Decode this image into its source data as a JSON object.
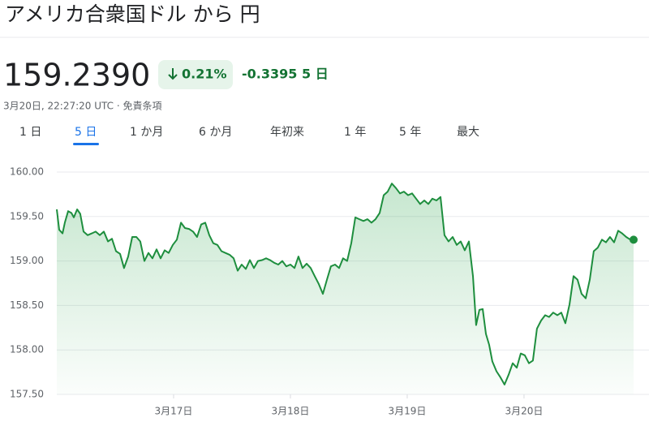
{
  "title": "アメリカ合衆国ドル から 円",
  "price": "159.2390",
  "change_pct": "0.21%",
  "change_abs": "-0.3395",
  "change_period": "5 日",
  "timestamp": "3月20日, 22:27:20 UTC · 免責条項",
  "tabs": [
    "1 日",
    "5 日",
    "1 か月",
    "6 か月",
    "年初来",
    "1 年",
    "5 年",
    "最大"
  ],
  "active_tab": 1,
  "chart_data": {
    "type": "line",
    "color": "#1e8e3e",
    "grid": true,
    "x": [
      0,
      0.021,
      0.049,
      0.069,
      0.097,
      0.125,
      0.146,
      0.174,
      0.201,
      0.229,
      0.264,
      0.299,
      0.333,
      0.368,
      0.403,
      0.438,
      0.472,
      0.507,
      0.542,
      0.576,
      0.611,
      0.646,
      0.681,
      0.715,
      0.75,
      0.785,
      0.819,
      0.854,
      0.889,
      0.924,
      0.958,
      0.993,
      1.028,
      1.063,
      1.097,
      1.132,
      1.167,
      1.201,
      1.236,
      1.271,
      1.306,
      1.34,
      1.375,
      1.41,
      1.444,
      1.479,
      1.514,
      1.549,
      1.583,
      1.618,
      1.653,
      1.688,
      1.722,
      1.757,
      1.792,
      1.826,
      1.861,
      1.896,
      1.931,
      1.965,
      2.0,
      2.035,
      2.069,
      2.104,
      2.139,
      2.174,
      2.208,
      2.243,
      2.278,
      2.313,
      2.347,
      2.382,
      2.417,
      2.451,
      2.486,
      2.521,
      2.556,
      2.59,
      2.625,
      2.66,
      2.694,
      2.729,
      2.764,
      2.799,
      2.833,
      2.868,
      2.903,
      2.938,
      2.972,
      3.007,
      3.042,
      3.076,
      3.111,
      3.146,
      3.181,
      3.215,
      3.25,
      3.285,
      3.319,
      3.354,
      3.389,
      3.424,
      3.458,
      3.493,
      3.528,
      3.563,
      3.59,
      3.618,
      3.646,
      3.674,
      3.701,
      3.729,
      3.764,
      3.799,
      3.833,
      3.868,
      3.903,
      3.938,
      3.972,
      4.007,
      4.042,
      4.076,
      4.111,
      4.146,
      4.181,
      4.215,
      4.25,
      4.285,
      4.319,
      4.354,
      4.389,
      4.424,
      4.458,
      4.493,
      4.528,
      4.563,
      4.597,
      4.632,
      4.667,
      4.701,
      4.736,
      4.771,
      4.806,
      4.84,
      4.875,
      4.91,
      4.938
    ],
    "values": [
      159.58,
      159.35,
      159.31,
      159.43,
      159.56,
      159.54,
      159.49,
      159.58,
      159.53,
      159.33,
      159.29,
      159.31,
      159.33,
      159.29,
      159.33,
      159.22,
      159.25,
      159.11,
      159.08,
      158.92,
      159.05,
      159.27,
      159.27,
      159.22,
      159.0,
      159.09,
      159.03,
      159.13,
      159.03,
      159.12,
      159.09,
      159.18,
      159.24,
      159.43,
      159.37,
      159.36,
      159.33,
      159.27,
      159.41,
      159.43,
      159.29,
      159.2,
      159.18,
      159.11,
      159.09,
      159.07,
      159.03,
      158.89,
      158.96,
      158.91,
      159.01,
      158.92,
      159.0,
      159.01,
      159.03,
      159.01,
      158.98,
      158.96,
      159.0,
      158.94,
      158.96,
      158.92,
      159.05,
      158.92,
      158.97,
      158.92,
      158.83,
      158.74,
      158.63,
      158.79,
      158.94,
      158.96,
      158.92,
      159.03,
      159.0,
      159.2,
      159.49,
      159.47,
      159.45,
      159.47,
      159.43,
      159.47,
      159.54,
      159.74,
      159.78,
      159.87,
      159.82,
      159.76,
      159.78,
      159.74,
      159.76,
      159.7,
      159.64,
      159.68,
      159.64,
      159.7,
      159.68,
      159.72,
      159.29,
      159.22,
      159.27,
      159.18,
      159.22,
      159.12,
      159.22,
      158.83,
      158.28,
      158.45,
      158.46,
      158.18,
      158.06,
      157.87,
      157.76,
      157.69,
      157.61,
      157.72,
      157.85,
      157.8,
      157.96,
      157.94,
      157.85,
      157.88,
      158.24,
      158.33,
      158.39,
      158.37,
      158.42,
      158.39,
      158.42,
      158.3,
      158.51,
      158.83,
      158.79,
      158.63,
      158.58,
      158.79,
      159.11,
      159.15,
      159.24,
      159.21,
      159.27,
      159.21,
      159.34,
      159.31,
      159.27,
      159.24,
      159.239
    ],
    "xlim": [
      0,
      4.938
    ],
    "xticks": [
      {
        "value": 1,
        "label": "3月17日"
      },
      {
        "value": 2,
        "label": "3月18日"
      },
      {
        "value": 3,
        "label": "3月19日"
      },
      {
        "value": 4,
        "label": "3月20日"
      }
    ],
    "ylim": [
      157.5,
      160.1
    ],
    "yticks": [
      {
        "value": 160,
        "label": "160.00"
      },
      {
        "value": 159.5,
        "label": "159.50"
      },
      {
        "value": 159,
        "label": "159.00"
      },
      {
        "value": 158.5,
        "label": "158.50"
      },
      {
        "value": 158,
        "label": "158.00"
      },
      {
        "value": 157.5,
        "label": "157.50"
      }
    ]
  }
}
